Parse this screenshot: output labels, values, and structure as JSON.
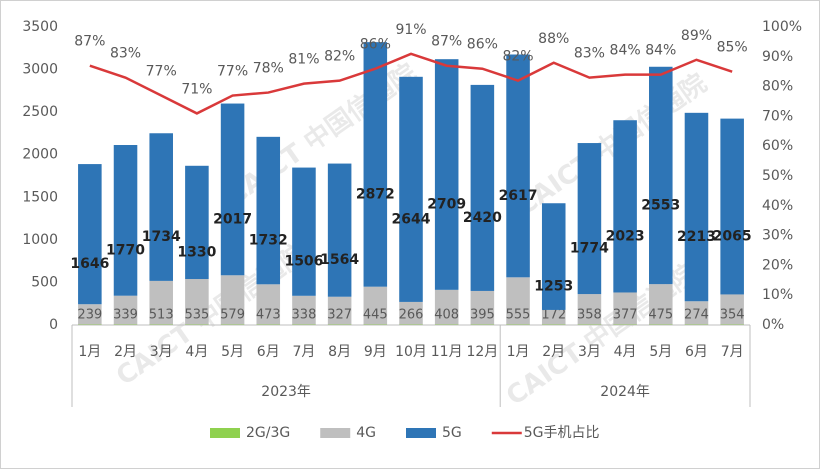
{
  "chart_data": {
    "type": "bar",
    "watermark": "CAICT 中国信通院",
    "groups": [
      {
        "name": "2023年",
        "categories": [
          "1月",
          "2月",
          "3月",
          "4月",
          "5月",
          "6月",
          "7月",
          "8月",
          "9月",
          "10月",
          "11月",
          "12月"
        ]
      },
      {
        "name": "2024年",
        "categories": [
          "1月",
          "2月",
          "3月",
          "4月",
          "5月",
          "6月",
          "7月"
        ]
      }
    ],
    "series": [
      {
        "name": "2G/3G",
        "color": "#8fd14f",
        "values": [
          5,
          5,
          5,
          5,
          5,
          5,
          5,
          5,
          5,
          5,
          5,
          5,
          5,
          5,
          5,
          5,
          5,
          5,
          5
        ]
      },
      {
        "name": "4G",
        "color": "#bfbfbf",
        "values": [
          239,
          339,
          513,
          535,
          579,
          473,
          338,
          327,
          445,
          266,
          408,
          395,
          555,
          172,
          358,
          377,
          475,
          274,
          354
        ]
      },
      {
        "name": "5G",
        "color": "#2e75b6",
        "values": [
          1646,
          1770,
          1734,
          1330,
          2017,
          1732,
          1506,
          1564,
          2872,
          2644,
          2709,
          2420,
          2617,
          1253,
          1774,
          2023,
          2553,
          2213,
          2065
        ]
      },
      {
        "name": "5G手机占比",
        "color": "#d9393a",
        "type": "line",
        "axis": "y2",
        "values": [
          87,
          83,
          77,
          71,
          77,
          78,
          81,
          82,
          86,
          91,
          87,
          86,
          82,
          88,
          83,
          84,
          84,
          89,
          85
        ],
        "value_labels": [
          "87%",
          "83%",
          "77%",
          "71%",
          "77%",
          "78%",
          "81%",
          "82%",
          "86%",
          "91%",
          "87%",
          "86%",
          "82%",
          "88%",
          "83%",
          "84%",
          "84%",
          "89%",
          "85%"
        ]
      }
    ],
    "ylim": [
      0,
      3500
    ],
    "yticks": [
      0,
      500,
      1000,
      1500,
      2000,
      2500,
      3000,
      3500
    ],
    "y2lim": [
      0,
      100
    ],
    "y2ticks": [
      {
        "value": 0,
        "label": "0%"
      },
      {
        "value": 10,
        "label": "10%"
      },
      {
        "value": 20,
        "label": "20%"
      },
      {
        "value": 30,
        "label": "30%"
      },
      {
        "value": 40,
        "label": "40%"
      },
      {
        "value": 50,
        "label": "50%"
      },
      {
        "value": 60,
        "label": "60%"
      },
      {
        "value": 70,
        "label": "70%"
      },
      {
        "value": 80,
        "label": "80%"
      },
      {
        "value": 90,
        "label": "90%"
      },
      {
        "value": 100,
        "label": "100%"
      }
    ]
  }
}
